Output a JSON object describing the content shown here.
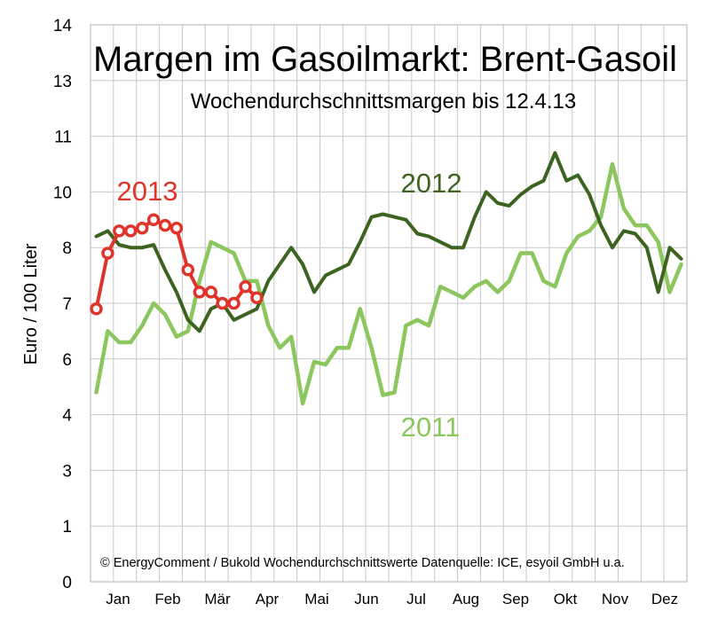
{
  "chart_data": {
    "type": "line",
    "title": "Margen im Gasoilmarkt: Brent-Gasoil",
    "subtitle": "Wochendurchschnittsmargen bis 12.4.13",
    "ylabel": "Euro / 100 Liter",
    "xlabel": "",
    "footnote": "© EnergyComment / Bukold Wochendurchschnittswerte Datenquelle: ICE, esyoil GmbH u.a.",
    "y_ticks": [
      "14",
      "13",
      "11",
      "10",
      "8",
      "7",
      "6",
      "4",
      "3",
      "1",
      "0"
    ],
    "x_labels": [
      "Jan",
      "Feb",
      "Mär",
      "Apr",
      "Mai",
      "Jun",
      "Jul",
      "Aug",
      "Sep",
      "Okt",
      "Nov",
      "Dez"
    ],
    "grid": true,
    "legend": "inline labels",
    "series": [
      {
        "name": "2011",
        "color": "#8cc65e",
        "points": [
          [
            1,
            4.8
          ],
          [
            2,
            6.5
          ],
          [
            3,
            6.3
          ],
          [
            4,
            6.3
          ],
          [
            5,
            6.6
          ],
          [
            6,
            7.0
          ],
          [
            7,
            6.8
          ],
          [
            8,
            6.4
          ],
          [
            9,
            6.5
          ],
          [
            10,
            7.4
          ],
          [
            11,
            8.2
          ],
          [
            12,
            8.0
          ],
          [
            13,
            7.9
          ],
          [
            14,
            7.4
          ],
          [
            15,
            7.4
          ],
          [
            16,
            6.6
          ],
          [
            17,
            6.2
          ],
          [
            18,
            6.4
          ],
          [
            19,
            4.4
          ],
          [
            20,
            5.9
          ],
          [
            21,
            5.8
          ],
          [
            22,
            6.2
          ],
          [
            23,
            6.2
          ],
          [
            24,
            6.9
          ],
          [
            25,
            6.2
          ],
          [
            26,
            4.7
          ],
          [
            27,
            4.8
          ],
          [
            28,
            6.6
          ],
          [
            29,
            6.7
          ],
          [
            30,
            6.6
          ],
          [
            31,
            7.3
          ],
          [
            32,
            7.2
          ],
          [
            33,
            7.1
          ],
          [
            34,
            7.3
          ],
          [
            35,
            7.4
          ],
          [
            36,
            7.2
          ],
          [
            37,
            7.4
          ],
          [
            38,
            7.9
          ],
          [
            39,
            7.9
          ],
          [
            40,
            7.4
          ],
          [
            41,
            7.3
          ],
          [
            42,
            7.9
          ],
          [
            43,
            8.4
          ],
          [
            44,
            8.6
          ],
          [
            45,
            9.1
          ],
          [
            46,
            10.5
          ],
          [
            47,
            9.4
          ],
          [
            48,
            8.8
          ],
          [
            49,
            8.8
          ],
          [
            50,
            8.2
          ],
          [
            51,
            7.2
          ],
          [
            52,
            7.7
          ]
        ]
      },
      {
        "name": "2012",
        "color": "#3d6320",
        "points": [
          [
            1,
            8.4
          ],
          [
            2,
            8.6
          ],
          [
            3,
            8.1
          ],
          [
            4,
            8.0
          ],
          [
            5,
            8.0
          ],
          [
            6,
            8.1
          ],
          [
            7,
            7.6
          ],
          [
            8,
            7.2
          ],
          [
            9,
            6.7
          ],
          [
            10,
            6.5
          ],
          [
            11,
            6.9
          ],
          [
            12,
            7.0
          ],
          [
            13,
            6.7
          ],
          [
            14,
            6.8
          ],
          [
            15,
            6.9
          ],
          [
            16,
            7.4
          ],
          [
            17,
            7.7
          ],
          [
            18,
            8.0
          ],
          [
            19,
            7.7
          ],
          [
            20,
            7.2
          ],
          [
            21,
            7.5
          ],
          [
            22,
            7.6
          ],
          [
            23,
            7.7
          ],
          [
            24,
            8.2
          ],
          [
            25,
            9.1
          ],
          [
            26,
            9.2
          ],
          [
            27,
            9.1
          ],
          [
            28,
            9.0
          ],
          [
            29,
            8.5
          ],
          [
            30,
            8.4
          ],
          [
            31,
            8.2
          ],
          [
            32,
            8.0
          ],
          [
            33,
            8.0
          ],
          [
            34,
            9.1
          ],
          [
            35,
            10.0
          ],
          [
            36,
            9.6
          ],
          [
            37,
            9.5
          ],
          [
            38,
            9.9
          ],
          [
            39,
            10.1
          ],
          [
            40,
            10.2
          ],
          [
            41,
            10.7
          ],
          [
            42,
            10.2
          ],
          [
            43,
            10.3
          ],
          [
            44,
            9.9
          ],
          [
            45,
            8.8
          ],
          [
            46,
            8.0
          ],
          [
            47,
            8.6
          ],
          [
            48,
            8.5
          ],
          [
            49,
            8.0
          ],
          [
            50,
            7.2
          ],
          [
            51,
            8.0
          ],
          [
            52,
            7.8
          ]
        ]
      },
      {
        "name": "2013",
        "color": "#e0332a",
        "points": [
          [
            1,
            6.9
          ],
          [
            2,
            7.9
          ],
          [
            3,
            8.6
          ],
          [
            4,
            8.6
          ],
          [
            5,
            8.7
          ],
          [
            6,
            9.0
          ],
          [
            7,
            8.8
          ],
          [
            8,
            8.7
          ],
          [
            9,
            7.6
          ],
          [
            10,
            7.2
          ],
          [
            11,
            7.2
          ],
          [
            12,
            7.0
          ],
          [
            13,
            7.0
          ],
          [
            14,
            7.3
          ],
          [
            15,
            7.1
          ]
        ]
      }
    ]
  }
}
